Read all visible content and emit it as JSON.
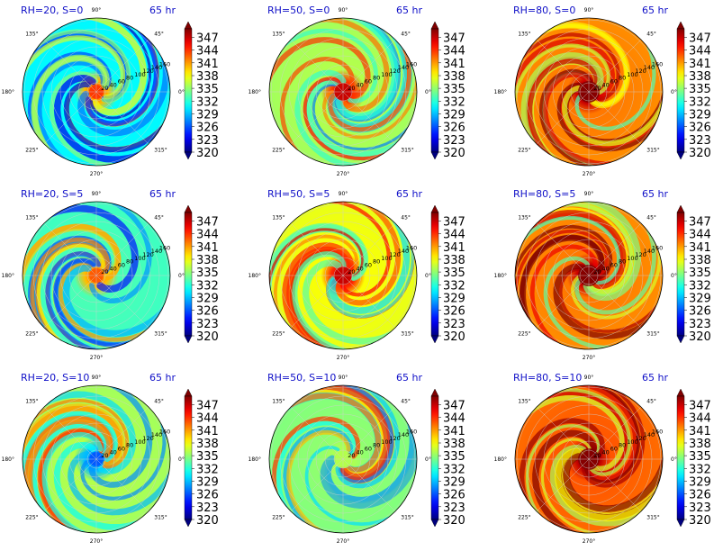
{
  "chart_data": {
    "type": "heatmap",
    "projection": "polar",
    "grid": true,
    "colormap": "jet",
    "angle_ticks": [
      "0°",
      "45°",
      "90°",
      "135°",
      "180°",
      "225°",
      "270°",
      "315°"
    ],
    "radial_ticks": [
      "20",
      "40",
      "60",
      "80",
      "100",
      "120",
      "140",
      "160"
    ],
    "colorbar_ticks": [
      "320",
      "323",
      "326",
      "329",
      "332",
      "335",
      "338",
      "341",
      "344",
      "347"
    ],
    "colorbar_range": [
      320,
      349
    ],
    "panels": [
      {
        "label": "RH=20, S=0",
        "time": "65 hr",
        "rh": 20,
        "s": 0,
        "core_value": 344,
        "background_value": 331
      },
      {
        "label": "RH=50, S=0",
        "time": "65 hr",
        "rh": 50,
        "s": 0,
        "core_value": 347,
        "background_value": 336
      },
      {
        "label": "RH=80, S=0",
        "time": "65 hr",
        "rh": 80,
        "s": 0,
        "core_value": 349,
        "background_value": 342
      },
      {
        "label": "RH=20, S=5",
        "time": "65 hr",
        "rh": 20,
        "s": 5,
        "core_value": 343,
        "background_value": 333
      },
      {
        "label": "RH=50, S=5",
        "time": "65 hr",
        "rh": 50,
        "s": 5,
        "core_value": 347,
        "background_value": 338
      },
      {
        "label": "RH=80, S=5",
        "time": "65 hr",
        "rh": 80,
        "s": 5,
        "core_value": 349,
        "background_value": 342
      },
      {
        "label": "RH=20, S=10",
        "time": "65 hr",
        "rh": 20,
        "s": 10,
        "core_value": 326,
        "background_value": 336
      },
      {
        "label": "RH=50, S=10",
        "time": "65 hr",
        "rh": 50,
        "s": 10,
        "core_value": 336,
        "background_value": 335
      },
      {
        "label": "RH=80, S=10",
        "time": "65 hr",
        "rh": 80,
        "s": 10,
        "core_value": 349,
        "background_value": 343
      }
    ]
  }
}
